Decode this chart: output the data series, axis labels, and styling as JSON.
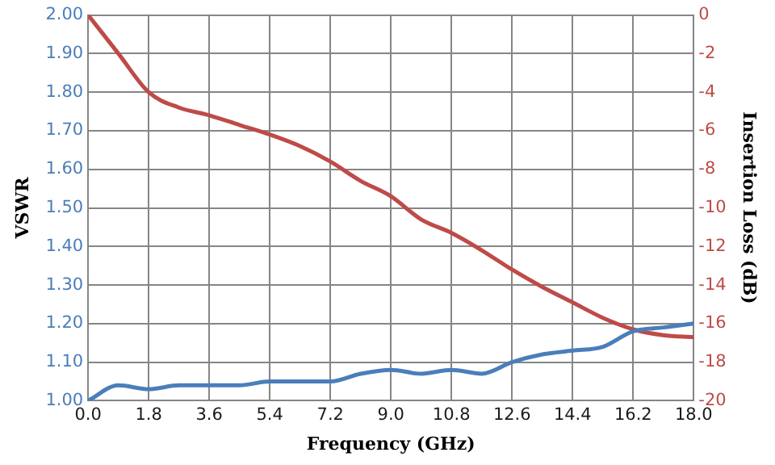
{
  "chart_data": {
    "type": "line",
    "xlabel": "Frequency (GHz)",
    "ylabel": "VSWR",
    "y2label": "Insertion Loss (dB)",
    "x": [
      0,
      0.9,
      1.8,
      2.7,
      3.6,
      4.5,
      5.4,
      6.3,
      7.2,
      8.1,
      9.0,
      9.9,
      10.8,
      11.7,
      12.6,
      13.5,
      14.4,
      15.3,
      16.2,
      17.1,
      18.0
    ],
    "series": [
      {
        "color": "#4a7ebb",
        "values": [
          1.0,
          1.04,
          1.03,
          1.04,
          1.04,
          1.04,
          1.05,
          1.05,
          1.05,
          1.07,
          1.08,
          1.07,
          1.08,
          1.07,
          1.1,
          1.12,
          1.13,
          1.14,
          1.18,
          1.19,
          1.2
        ]
      },
      {
        "color": "#be4b48",
        "axis": "y2",
        "values": [
          0,
          -2.0,
          -4.0,
          -4.8,
          -5.2,
          -5.7,
          -6.2,
          -6.8,
          -7.6,
          -8.6,
          -9.4,
          -10.6,
          -11.3,
          -12.2,
          -13.2,
          -14.1,
          -14.9,
          -15.7,
          -16.3,
          -16.6,
          -16.7
        ]
      }
    ],
    "xlim": [
      0,
      18
    ],
    "xticks": [
      {
        "value": 0,
        "label": "0.0"
      },
      1.8,
      3.6,
      5.4,
      7.2,
      {
        "value": 9,
        "label": "9.0"
      },
      10.8,
      12.6,
      14.4,
      16.2,
      {
        "value": 18,
        "label": "18.0"
      }
    ],
    "ylim": [
      1,
      2
    ],
    "yticks": [
      {
        "value": 1,
        "label": "1.00"
      },
      {
        "value": 1.1,
        "label": "1.10"
      },
      {
        "value": 1.2,
        "label": "1.20"
      },
      {
        "value": 1.3,
        "label": "1.30"
      },
      {
        "value": 1.4,
        "label": "1.40"
      },
      {
        "value": 1.5,
        "label": "1.50"
      },
      {
        "value": 1.6,
        "label": "1.60"
      },
      {
        "value": 1.7,
        "label": "1.70"
      },
      {
        "value": 1.8,
        "label": "1.80"
      },
      {
        "value": 1.9,
        "label": "1.90"
      },
      {
        "value": 2,
        "label": "2.00"
      }
    ],
    "y2lim": [
      -20,
      0
    ],
    "y2ticks": [
      -20,
      -18,
      -16,
      -14,
      -12,
      -10,
      -8,
      -6,
      -4,
      -2,
      0
    ],
    "grid": true,
    "legend": false,
    "marker": "none",
    "line_style": "solid"
  }
}
